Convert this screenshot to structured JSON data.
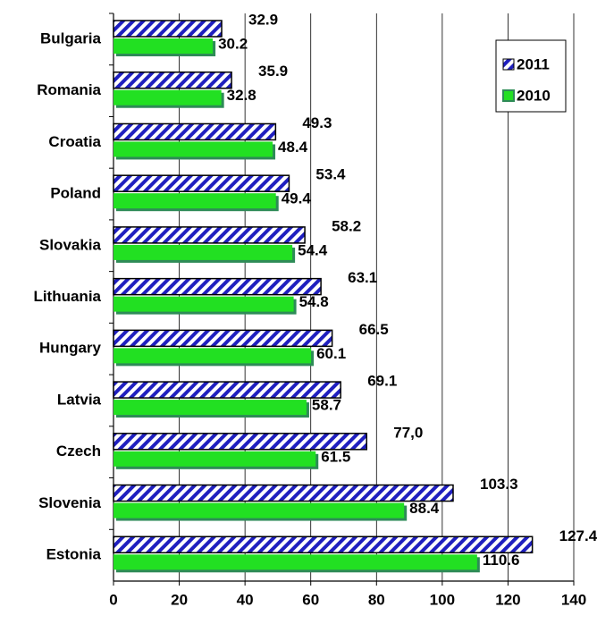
{
  "chart_data": {
    "type": "bar",
    "orientation": "horizontal",
    "categories": [
      "Bulgaria",
      "Romania",
      "Croatia",
      "Poland",
      "Slovakia",
      "Lithuania",
      "Hungary",
      "Latvia",
      "Czech",
      "Slovenia",
      "Estonia"
    ],
    "series": [
      {
        "name": "2011",
        "color": "#1f1fbf",
        "pattern": "hatched",
        "values": [
          32.9,
          35.9,
          49.3,
          53.4,
          58.2,
          63.1,
          66.5,
          69.1,
          77.0,
          103.3,
          127.4
        ],
        "value_labels": [
          "32.9",
          "35.9",
          "49.3",
          "53.4",
          "58.2",
          "63.1",
          "66.5",
          "69.1",
          "77,0",
          "103.3",
          "127.4"
        ]
      },
      {
        "name": "2010",
        "color": "#22e022",
        "values": [
          30.2,
          32.8,
          48.4,
          49.4,
          54.4,
          54.8,
          60.1,
          58.7,
          61.5,
          88.4,
          110.6
        ]
      }
    ],
    "xlim": [
      0,
      140
    ],
    "xticks": [
      0,
      20,
      40,
      60,
      80,
      100,
      120,
      140
    ],
    "grid": true,
    "legend": "upper right"
  }
}
